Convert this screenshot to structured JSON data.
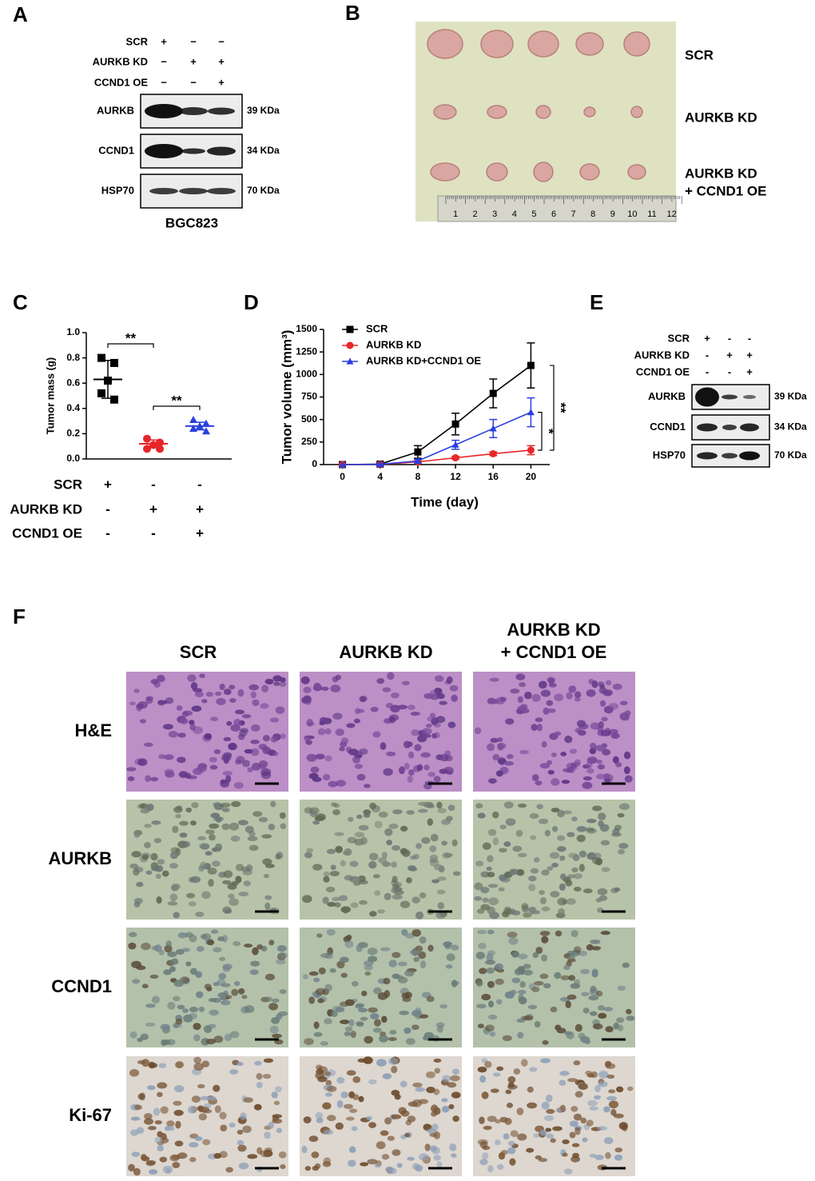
{
  "panel_a": {
    "label": "A",
    "conditions": [
      {
        "name": "SCR",
        "marks": [
          "+",
          "−",
          "−"
        ]
      },
      {
        "name": "AURKB KD",
        "marks": [
          "−",
          "+",
          "+"
        ]
      },
      {
        "name": "CCND1 OE",
        "marks": [
          "−",
          "−",
          "+"
        ]
      }
    ],
    "blots": [
      {
        "name": "AURKB",
        "size": "39 KDa"
      },
      {
        "name": "CCND1",
        "size": "34 KDa"
      },
      {
        "name": "HSP70",
        "size": "70 KDa"
      }
    ],
    "cell_line": "BGC823"
  },
  "panel_b": {
    "label": "B",
    "groups": [
      [
        "SCR"
      ],
      [
        "AURKB KD"
      ],
      [
        "AURKB KD",
        "+ CCND1 OE"
      ]
    ],
    "ruler_labels": [
      1,
      2,
      3,
      4,
      5,
      6,
      7,
      8,
      9,
      10,
      11,
      12
    ]
  },
  "chart_data": [
    {
      "type": "dot",
      "panel_label": "C",
      "y_label": "Tumor mass (g)",
      "ylim": [
        0,
        1
      ],
      "yticks": [
        {
          "value": 0,
          "label": "0.0"
        },
        {
          "value": 0.2,
          "label": "0.2"
        },
        {
          "value": 0.4,
          "label": "0.4"
        },
        {
          "value": 0.6,
          "label": "0.6"
        },
        {
          "value": 0.8,
          "label": "0.8"
        },
        {
          "value": 1,
          "label": "1.0"
        }
      ],
      "series": [
        {
          "color": "#000000",
          "marker": "square",
          "values": [
            0.8,
            0.76,
            0.62,
            0.52,
            0.47
          ],
          "mean": 0.63,
          "sd": 0.15
        },
        {
          "color": "#e8262a",
          "marker": "circle",
          "values": [
            0.16,
            0.13,
            0.11,
            0.08,
            0.08
          ],
          "mean": 0.12,
          "sd": 0.03
        },
        {
          "color": "#2a3fe0",
          "marker": "triangle",
          "values": [
            0.31,
            0.28,
            0.26,
            0.24,
            0.22
          ],
          "mean": 0.26,
          "sd": 0.03
        }
      ],
      "conditions": [
        {
          "name": "SCR",
          "marks": [
            "+",
            "-",
            "-"
          ]
        },
        {
          "name": "AURKB KD",
          "marks": [
            "-",
            "+",
            "+"
          ]
        },
        {
          "name": "CCND1 OE",
          "marks": [
            "-",
            "-",
            "+"
          ]
        }
      ],
      "annotations": [
        "**",
        "**"
      ]
    },
    {
      "type": "line",
      "panel_label": "D",
      "x_label": "Time (day)",
      "y_label": "Tumor volume (mm³)",
      "x": [
        0,
        4,
        8,
        12,
        16,
        20
      ],
      "xlim": [
        -2,
        22
      ],
      "xticks": [
        0,
        4,
        8,
        12,
        16,
        20
      ],
      "ylim": [
        0,
        1500
      ],
      "yticks": [
        0,
        250,
        500,
        750,
        1000,
        1250,
        1500
      ],
      "series": [
        {
          "name": "SCR",
          "color": "#000000",
          "marker": "square",
          "values": [
            0,
            5,
            140,
            450,
            790,
            1100
          ],
          "errors": [
            0,
            10,
            70,
            120,
            160,
            250
          ]
        },
        {
          "name": "AURKB KD",
          "color": "#e8262a",
          "marker": "circle",
          "values": [
            0,
            2,
            30,
            75,
            120,
            160
          ],
          "errors": [
            0,
            3,
            10,
            15,
            20,
            50
          ]
        },
        {
          "name": "AURKB KD+CCND1 OE",
          "color": "#2a3fe0",
          "marker": "triangle",
          "values": [
            0,
            3,
            40,
            220,
            400,
            580
          ],
          "errors": [
            0,
            5,
            20,
            50,
            100,
            160
          ]
        }
      ],
      "annotations": [
        "*",
        "**"
      ]
    }
  ],
  "panel_e": {
    "label": "E",
    "conditions": [
      {
        "name": "SCR",
        "marks": [
          "+",
          "-",
          "-"
        ]
      },
      {
        "name": "AURKB KD",
        "marks": [
          "-",
          "+",
          "+"
        ]
      },
      {
        "name": "CCND1 OE",
        "marks": [
          "-",
          "-",
          "+"
        ]
      }
    ],
    "blots": [
      {
        "name": "AURKB",
        "size": "39 KDa"
      },
      {
        "name": "CCND1",
        "size": "34 KDa"
      },
      {
        "name": "HSP70",
        "size": "70 KDa"
      }
    ]
  },
  "panel_f": {
    "label": "F",
    "columns": [
      [
        "SCR"
      ],
      [
        "AURKB KD"
      ],
      [
        "AURKB KD",
        "+ CCND1 OE"
      ]
    ],
    "rows": [
      "H&E",
      "AURKB",
      "CCND1",
      "Ki-67"
    ]
  }
}
